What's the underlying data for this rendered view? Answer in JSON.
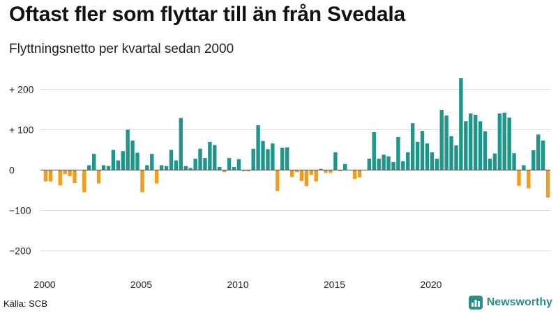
{
  "header": {
    "title": "Oftast fler som flyttar till än från Svedala",
    "subtitle": "Flyttningsnetto per kvartal sedan 2000"
  },
  "footer": {
    "source": "Källa: SCB",
    "brand": "Newsworthy"
  },
  "colors": {
    "positive": "#1f968b",
    "negative": "#f39c1c",
    "grid": "#dddddd",
    "brand": "#2a8f8a"
  },
  "chart_data": {
    "type": "bar",
    "title": "Oftast fler som flyttar till än från Svedala",
    "subtitle": "Flyttningsnetto per kvartal sedan 2000",
    "xlabel": "",
    "ylabel": "",
    "ylim": [
      -230,
      235
    ],
    "grid": true,
    "y_ticks": [
      {
        "value": 200,
        "label": "+ 200"
      },
      {
        "value": 100,
        "label": "+ 100"
      },
      {
        "value": 0,
        "label": "0"
      },
      {
        "value": -100,
        "label": "−100"
      },
      {
        "value": -200,
        "label": "−200"
      }
    ],
    "x_ticks": [
      {
        "value": 2000,
        "label": "2000"
      },
      {
        "value": 2005,
        "label": "2005"
      },
      {
        "value": 2010,
        "label": "2010"
      },
      {
        "value": 2015,
        "label": "2015"
      },
      {
        "value": 2020,
        "label": "2020"
      }
    ],
    "start_year": 2000,
    "values": [
      -28,
      -28,
      0,
      -38,
      -10,
      -15,
      -32,
      0,
      -55,
      12,
      40,
      -33,
      12,
      10,
      50,
      24,
      47,
      100,
      73,
      43,
      -55,
      12,
      40,
      -33,
      12,
      10,
      50,
      24,
      129,
      10,
      5,
      28,
      53,
      30,
      70,
      62,
      8,
      -5,
      30,
      8,
      27,
      -3,
      -3,
      53,
      111,
      72,
      52,
      66,
      -52,
      55,
      56,
      -17,
      -5,
      -27,
      -40,
      -12,
      -28,
      3,
      -7,
      -7,
      44,
      -3,
      15,
      0,
      -22,
      -18,
      0,
      28,
      94,
      28,
      38,
      34,
      20,
      82,
      22,
      44,
      116,
      70,
      97,
      66,
      44,
      28,
      149,
      135,
      84,
      61,
      228,
      121,
      140,
      137,
      121,
      96,
      28,
      41,
      140,
      142,
      130,
      42,
      -39,
      12,
      -45,
      49,
      88,
      73,
      -68
    ]
  }
}
